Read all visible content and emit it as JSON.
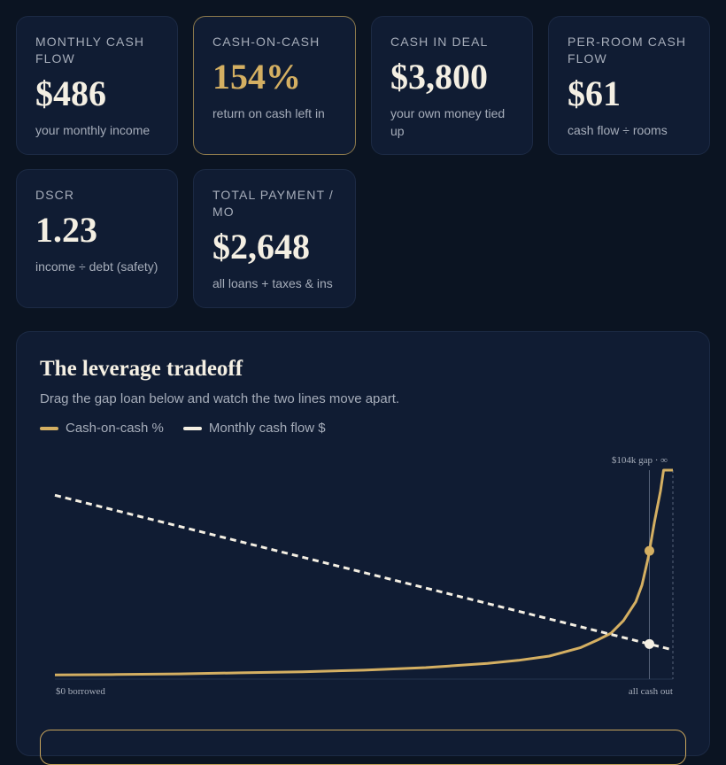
{
  "metrics": [
    {
      "label": "Monthly cash flow",
      "value": "$486",
      "sub": "your monthly income"
    },
    {
      "label": "Cash-on-cash",
      "value": "154%",
      "sub": "return on cash left in"
    },
    {
      "label": "Cash in deal",
      "value": "$3,800",
      "sub": "your own money tied up"
    },
    {
      "label": "Per-room cash flow",
      "value": "$61",
      "sub": "cash flow ÷ rooms"
    },
    {
      "label": "DSCR",
      "value": "1.23",
      "sub": "income ÷ debt (safety)"
    },
    {
      "label": "Total payment / mo",
      "value": "$2,648",
      "sub": "all loans + taxes & ins"
    }
  ],
  "panel": {
    "title": "The leverage tradeoff",
    "subtitle": "Drag the gap loan below and watch the two lines move apart."
  },
  "colors": {
    "gold": "#d4af62",
    "white": "#f4efe3",
    "bg": "#101c33"
  },
  "chart_data": {
    "type": "line",
    "x_start_label": "$0 borrowed",
    "x_end_label": "all cash out",
    "marker_label": "$104k gap · ∞",
    "x_range": [
      0,
      1
    ],
    "current_x": 0.962,
    "series": [
      {
        "name": "Cash-on-cash %",
        "style": "solid",
        "color": "#d4af62",
        "x": [
          0,
          0.1,
          0.2,
          0.3,
          0.4,
          0.5,
          0.6,
          0.7,
          0.75,
          0.8,
          0.85,
          0.88,
          0.9,
          0.92,
          0.94,
          0.95,
          0.96,
          0.97,
          0.98,
          0.985,
          0.99,
          1.0
        ],
        "y": [
          0.02,
          0.022,
          0.025,
          0.03,
          0.035,
          0.043,
          0.055,
          0.075,
          0.09,
          0.11,
          0.15,
          0.19,
          0.22,
          0.28,
          0.37,
          0.45,
          0.58,
          0.75,
          0.9,
          1.0,
          1.0,
          1.0
        ]
      },
      {
        "name": "Monthly cash flow $",
        "style": "dashed",
        "color": "#f4efe3",
        "x": [
          0,
          1
        ],
        "y": [
          0.88,
          0.14
        ]
      }
    ]
  }
}
